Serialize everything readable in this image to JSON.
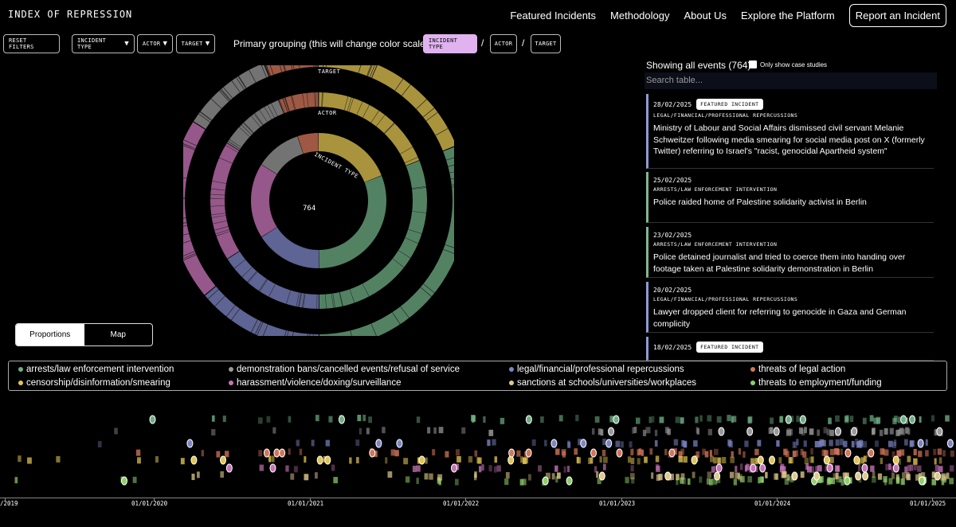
{
  "header": {
    "logo": "INDEX OF REPRESSION",
    "nav": [
      "Featured Incidents",
      "Methodology",
      "About Us",
      "Explore the Platform"
    ],
    "report": "Report an Incident"
  },
  "filters": {
    "reset": "RESET FILTERS",
    "incident_type": "INCIDENT TYPE",
    "actor": "ACTOR",
    "target": "TARGET",
    "arrow": "▼"
  },
  "grouping": {
    "label": "Primary grouping (this will change color scales)",
    "options": [
      "INCIDENT TYPE",
      "ACTOR",
      "TARGET"
    ],
    "sep": "/"
  },
  "donut": {
    "total": "764",
    "rings": [
      "TARGET",
      "ACTOR",
      "INCIDENT TYPE"
    ]
  },
  "view_toggle": {
    "proportions": "Proportions",
    "map": "Map"
  },
  "panel": {
    "heading": "Showing all events (764)",
    "case_studies": "Only show case studies",
    "search_placeholder": "Search table...",
    "featured_badge": "FEATURED INCIDENT",
    "cards": [
      {
        "date": "28/02/2025",
        "featured": true,
        "category": "LEGAL/FINANCIAL/PROFESSIONAL REPERCUSSIONS",
        "title": "Ministry of Labour and Social Affairs dismissed civil servant Melanie Schweitzer following media smearing for social media post on X (formerly Twitter) referring to Israel's \"racist, genocidal Apartheid system\"",
        "color": "#8f9bd4"
      },
      {
        "date": "25/02/2025",
        "featured": false,
        "category": "ARRESTS/LAW ENFORCEMENT INTERVENTION",
        "title": "Police raided home of Palestine solidarity activist in Berlin",
        "color": "#7fb892"
      },
      {
        "date": "23/02/2025",
        "featured": false,
        "category": "ARRESTS/LAW ENFORCEMENT INTERVENTION",
        "title": "Police detained journalist and tried to coerce them into handing over footage taken at Palestine solidarity demonstration in Berlin",
        "color": "#7fb892"
      },
      {
        "date": "20/02/2025",
        "featured": false,
        "category": "LEGAL/FINANCIAL/PROFESSIONAL REPERCUSSIONS",
        "title": "Lawyer dropped client for referring to genocide in Gaza and German complicity",
        "color": "#8f9bd4"
      },
      {
        "date": "18/02/2025",
        "featured": true,
        "category": "",
        "title": "",
        "color": "#8f9bd4"
      }
    ]
  },
  "legend": [
    {
      "label": "arrests/law enforcement intervention",
      "color": "#6fae84"
    },
    {
      "label": "demonstration bans/cancelled events/refusal of service",
      "color": "#9a9a9a"
    },
    {
      "label": "legal/financial/professional repercussions",
      "color": "#7d86c4"
    },
    {
      "label": "threats of legal action",
      "color": "#d4765a"
    },
    {
      "label": "censorship/disinformation/smearing",
      "color": "#e1c552"
    },
    {
      "label": "harassment/violence/doxing/surveillance",
      "color": "#c874b8"
    },
    {
      "label": "sanctions at schools/universities/workplaces",
      "color": "#e0c98a"
    },
    {
      "label": "threats to employment/funding",
      "color": "#8fcf6a"
    }
  ],
  "timeline": {
    "ticks": [
      "/2019",
      "01/01/2020",
      "01/01/2021",
      "01/01/2022",
      "01/01/2023",
      "01/01/2024",
      "01/01/2025"
    ]
  }
}
